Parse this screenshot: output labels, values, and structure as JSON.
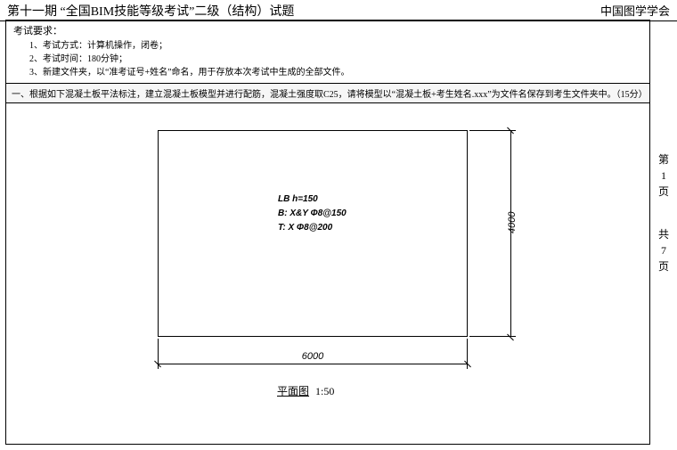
{
  "header": {
    "left": "第十一期 “全国BIM技能等级考试”二级（结构）试题",
    "right": "中国图学学会"
  },
  "requirements": {
    "title": "考试要求：",
    "items": [
      "考试方式：计算机操作，闭卷；",
      "考试时间：180分钟；",
      "新建文件夹，以“准考证号+姓名”命名，用于存放本次考试中生成的全部文件。"
    ]
  },
  "question": {
    "text": "一、根据如下混凝土板平法标注，建立混凝土板模型并进行配筋，混凝土强度取C25，请将模型以“混凝土板+考生姓名.xxx”为文件名保存到考生文件夹中。（15分）"
  },
  "slab": {
    "annotations": {
      "line1": "LB h=150",
      "line2": "B: X&Y Φ8@150",
      "line3": "T: X Φ8@200"
    },
    "width_mm": "6000",
    "height_mm": "4000",
    "border_color": "#000000",
    "background": "#ffffff"
  },
  "plan_title": {
    "name": "平面图",
    "scale": "1:50"
  },
  "pager": {
    "p1a": "第",
    "p1b": "1",
    "p1c": "页",
    "p2a": "共",
    "p2b": "7",
    "p2c": "页"
  },
  "style": {
    "page_bg": "#ffffff",
    "line_color": "#000000",
    "question_band_bg": "#f6f6f6",
    "annotation_font": "Arial italic bold 10px"
  }
}
